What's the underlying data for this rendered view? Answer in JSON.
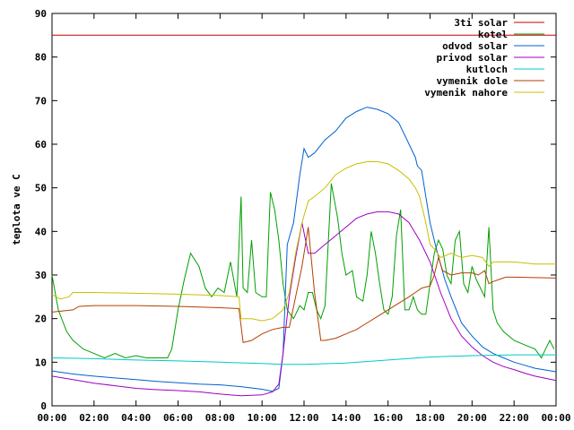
{
  "chart_data": {
    "type": "line",
    "title": "",
    "xlabel": "",
    "ylabel": "teplota ve C",
    "xlim": [
      0,
      24
    ],
    "ylim": [
      0,
      90
    ],
    "x_ticks": [
      "00:00",
      "02:00",
      "04:00",
      "06:00",
      "08:00",
      "10:00",
      "12:00",
      "14:00",
      "16:00",
      "18:00",
      "20:00",
      "22:00",
      "00:00"
    ],
    "y_ticks": [
      "0",
      "10",
      "20",
      "30",
      "40",
      "50",
      "60",
      "70",
      "80",
      "90"
    ],
    "grid": false,
    "legend_position": "top-right",
    "series": [
      {
        "name": "3ti solar",
        "color": "#cc0000",
        "points": [
          [
            0,
            85
          ],
          [
            24,
            85
          ]
        ]
      },
      {
        "name": "kotel",
        "color": "#00a000",
        "points": [
          [
            0,
            30
          ],
          [
            0.3,
            22
          ],
          [
            0.7,
            17
          ],
          [
            1,
            15
          ],
          [
            1.5,
            13
          ],
          [
            2,
            12
          ],
          [
            2.5,
            11
          ],
          [
            3,
            12
          ],
          [
            3.5,
            11
          ],
          [
            4,
            11.5
          ],
          [
            4.5,
            11
          ],
          [
            5,
            11
          ],
          [
            5.5,
            11
          ],
          [
            5.7,
            13
          ],
          [
            6,
            22
          ],
          [
            6.3,
            29
          ],
          [
            6.6,
            35
          ],
          [
            7,
            32
          ],
          [
            7.3,
            27
          ],
          [
            7.6,
            25
          ],
          [
            7.9,
            27
          ],
          [
            8.2,
            26
          ],
          [
            8.5,
            33
          ],
          [
            8.8,
            25
          ],
          [
            9,
            48
          ],
          [
            9.1,
            27
          ],
          [
            9.3,
            26
          ],
          [
            9.5,
            38
          ],
          [
            9.7,
            26
          ],
          [
            10,
            25
          ],
          [
            10.2,
            25
          ],
          [
            10.4,
            49
          ],
          [
            10.6,
            45
          ],
          [
            10.8,
            38
          ],
          [
            11,
            28
          ],
          [
            11.2,
            22
          ],
          [
            11.5,
            20
          ],
          [
            11.8,
            23
          ],
          [
            12,
            22
          ],
          [
            12.2,
            26
          ],
          [
            12.4,
            26
          ],
          [
            12.6,
            22
          ],
          [
            12.8,
            20
          ],
          [
            13,
            23
          ],
          [
            13.3,
            51
          ],
          [
            13.6,
            43
          ],
          [
            13.8,
            35
          ],
          [
            14,
            30
          ],
          [
            14.3,
            31
          ],
          [
            14.5,
            25
          ],
          [
            14.8,
            24
          ],
          [
            15,
            30
          ],
          [
            15.2,
            40
          ],
          [
            15.4,
            35
          ],
          [
            15.6,
            28
          ],
          [
            15.8,
            22
          ],
          [
            16,
            21
          ],
          [
            16.2,
            25
          ],
          [
            16.4,
            39
          ],
          [
            16.6,
            45
          ],
          [
            16.8,
            22
          ],
          [
            17,
            22
          ],
          [
            17.2,
            25
          ],
          [
            17.4,
            22
          ],
          [
            17.6,
            21
          ],
          [
            17.8,
            21
          ],
          [
            18,
            28
          ],
          [
            18.2,
            35
          ],
          [
            18.4,
            38
          ],
          [
            18.6,
            36
          ],
          [
            18.8,
            30
          ],
          [
            19,
            28
          ],
          [
            19.2,
            38
          ],
          [
            19.4,
            40
          ],
          [
            19.6,
            28
          ],
          [
            19.8,
            26
          ],
          [
            20,
            32
          ],
          [
            20.2,
            29
          ],
          [
            20.4,
            27
          ],
          [
            20.6,
            25
          ],
          [
            20.8,
            41
          ],
          [
            21,
            22
          ],
          [
            21.2,
            19
          ],
          [
            21.5,
            17
          ],
          [
            22,
            15
          ],
          [
            22.5,
            14
          ],
          [
            23,
            13
          ],
          [
            23.3,
            11
          ],
          [
            23.5,
            13
          ],
          [
            23.7,
            15
          ],
          [
            23.9,
            13
          ]
        ]
      },
      {
        "name": "odvod solar",
        "color": "#0060d0",
        "points": [
          [
            0,
            8
          ],
          [
            1,
            7.3
          ],
          [
            2,
            6.8
          ],
          [
            3,
            6.4
          ],
          [
            4,
            6
          ],
          [
            5,
            5.6
          ],
          [
            6,
            5.3
          ],
          [
            7,
            5
          ],
          [
            8,
            4.8
          ],
          [
            9,
            4.4
          ],
          [
            10,
            3.8
          ],
          [
            10.5,
            3.3
          ],
          [
            10.8,
            4
          ],
          [
            11,
            12
          ],
          [
            11.2,
            37
          ],
          [
            11.5,
            42
          ],
          [
            11.8,
            53
          ],
          [
            12,
            59
          ],
          [
            12.2,
            57
          ],
          [
            12.5,
            58
          ],
          [
            13,
            61
          ],
          [
            13.5,
            63
          ],
          [
            14,
            66
          ],
          [
            14.5,
            67.5
          ],
          [
            15,
            68.5
          ],
          [
            15.5,
            68
          ],
          [
            16,
            67
          ],
          [
            16.5,
            65
          ],
          [
            17,
            60
          ],
          [
            17.3,
            57
          ],
          [
            17.4,
            55
          ],
          [
            17.6,
            54
          ],
          [
            17.8,
            48
          ],
          [
            18,
            42
          ],
          [
            18.3,
            36
          ],
          [
            18.7,
            29
          ],
          [
            19,
            25
          ],
          [
            19.5,
            19
          ],
          [
            20,
            16
          ],
          [
            20.5,
            13.5
          ],
          [
            21,
            12
          ],
          [
            21.5,
            11
          ],
          [
            22,
            10
          ],
          [
            22.5,
            9.3
          ],
          [
            23,
            8.6
          ],
          [
            24,
            7.8
          ]
        ]
      },
      {
        "name": "privod solar",
        "color": "#a000c0",
        "points": [
          [
            0,
            6.8
          ],
          [
            1,
            6
          ],
          [
            2,
            5.2
          ],
          [
            3,
            4.6
          ],
          [
            4,
            4
          ],
          [
            5,
            3.7
          ],
          [
            6,
            3.5
          ],
          [
            7,
            3.2
          ],
          [
            8,
            2.7
          ],
          [
            9,
            2.3
          ],
          [
            10,
            2.5
          ],
          [
            10.5,
            3.2
          ],
          [
            10.8,
            5
          ],
          [
            11,
            12
          ],
          [
            11.3,
            25
          ],
          [
            11.6,
            34
          ],
          [
            11.9,
            42
          ],
          [
            12.2,
            35
          ],
          [
            12.5,
            35
          ],
          [
            13,
            37
          ],
          [
            13.5,
            39
          ],
          [
            14,
            41
          ],
          [
            14.5,
            43
          ],
          [
            15,
            44
          ],
          [
            15.5,
            44.5
          ],
          [
            16,
            44.5
          ],
          [
            16.5,
            44
          ],
          [
            17,
            42
          ],
          [
            17.5,
            38
          ],
          [
            18,
            33
          ],
          [
            18.5,
            26
          ],
          [
            19,
            20
          ],
          [
            19.5,
            16
          ],
          [
            20,
            13.5
          ],
          [
            20.5,
            11.5
          ],
          [
            21,
            10
          ],
          [
            21.5,
            9
          ],
          [
            22,
            8.3
          ],
          [
            22.5,
            7.5
          ],
          [
            23,
            6.8
          ],
          [
            24,
            5.8
          ]
        ]
      },
      {
        "name": "kutloch",
        "color": "#00c8c8",
        "points": [
          [
            0,
            11
          ],
          [
            2,
            10.8
          ],
          [
            4,
            10.5
          ],
          [
            6,
            10.3
          ],
          [
            8,
            10
          ],
          [
            10,
            9.7
          ],
          [
            11,
            9.5
          ],
          [
            12,
            9.5
          ],
          [
            14,
            9.8
          ],
          [
            16,
            10.5
          ],
          [
            18,
            11.2
          ],
          [
            20,
            11.5
          ],
          [
            22,
            11.7
          ],
          [
            24,
            11.7
          ]
        ]
      },
      {
        "name": "vymenik dole",
        "color": "#b04000",
        "points": [
          [
            0,
            21.5
          ],
          [
            1,
            22
          ],
          [
            1.3,
            22.8
          ],
          [
            2,
            23
          ],
          [
            4,
            23
          ],
          [
            6,
            22.8
          ],
          [
            8,
            22.5
          ],
          [
            8.9,
            22.3
          ],
          [
            9.1,
            14.5
          ],
          [
            9.5,
            15
          ],
          [
            10,
            16.5
          ],
          [
            10.5,
            17.5
          ],
          [
            11,
            18
          ],
          [
            11.3,
            18
          ],
          [
            11.6,
            25
          ],
          [
            11.9,
            32
          ],
          [
            12.2,
            41
          ],
          [
            12.5,
            26
          ],
          [
            12.8,
            15
          ],
          [
            13,
            15
          ],
          [
            13.5,
            15.5
          ],
          [
            14,
            16.5
          ],
          [
            14.5,
            17.5
          ],
          [
            15,
            19
          ],
          [
            15.5,
            20.5
          ],
          [
            16,
            22
          ],
          [
            16.5,
            23.5
          ],
          [
            17,
            25
          ],
          [
            17.3,
            26
          ],
          [
            17.6,
            27
          ],
          [
            18,
            27.5
          ],
          [
            18.2,
            30
          ],
          [
            18.4,
            34
          ],
          [
            18.6,
            31
          ],
          [
            19,
            30
          ],
          [
            19.5,
            30.5
          ],
          [
            20,
            30.5
          ],
          [
            20.3,
            30
          ],
          [
            20.6,
            31
          ],
          [
            20.8,
            28
          ],
          [
            21,
            28.5
          ],
          [
            21.3,
            29
          ],
          [
            21.6,
            29.5
          ],
          [
            22,
            29.5
          ],
          [
            23,
            29.4
          ],
          [
            24,
            29.3
          ]
        ]
      },
      {
        "name": "vymenik nahore",
        "color": "#c8c000",
        "points": [
          [
            0,
            25.5
          ],
          [
            0.4,
            24.5
          ],
          [
            0.8,
            25
          ],
          [
            1,
            26
          ],
          [
            2,
            26
          ],
          [
            4,
            25.8
          ],
          [
            6,
            25.6
          ],
          [
            8,
            25.3
          ],
          [
            8.9,
            25
          ],
          [
            9,
            20
          ],
          [
            9.5,
            20
          ],
          [
            10,
            19.5
          ],
          [
            10.5,
            20
          ],
          [
            11,
            22
          ],
          [
            11.3,
            26
          ],
          [
            11.6,
            35
          ],
          [
            11.9,
            42
          ],
          [
            12.2,
            47
          ],
          [
            12.5,
            48
          ],
          [
            13,
            50
          ],
          [
            13.5,
            53
          ],
          [
            14,
            54.5
          ],
          [
            14.5,
            55.5
          ],
          [
            15,
            56
          ],
          [
            15.5,
            56
          ],
          [
            16,
            55.5
          ],
          [
            16.5,
            54
          ],
          [
            17,
            52
          ],
          [
            17.3,
            50
          ],
          [
            17.5,
            48
          ],
          [
            17.8,
            42
          ],
          [
            18,
            37
          ],
          [
            18.2,
            36
          ],
          [
            18.5,
            34
          ],
          [
            19,
            35
          ],
          [
            19.5,
            34
          ],
          [
            20,
            34.5
          ],
          [
            20.5,
            34
          ],
          [
            20.8,
            32
          ],
          [
            21,
            33
          ],
          [
            21.5,
            33
          ],
          [
            22,
            33
          ],
          [
            23,
            32.5
          ],
          [
            24,
            32.5
          ]
        ]
      }
    ]
  }
}
